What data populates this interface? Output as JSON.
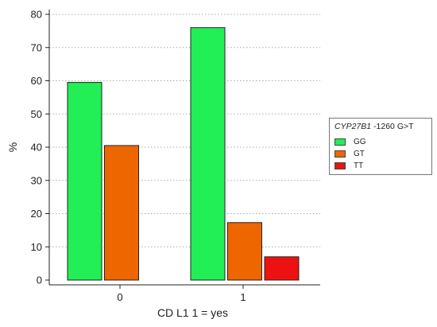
{
  "chart_data": {
    "type": "bar",
    "categories": [
      "0",
      "1"
    ],
    "series": [
      {
        "name": "GG",
        "values": [
          59.5,
          76.0
        ],
        "color": "#22ee55"
      },
      {
        "name": "GT",
        "values": [
          40.5,
          17.3
        ],
        "color": "#ee6600"
      },
      {
        "name": "TT",
        "values": [
          0.0,
          7.0
        ],
        "color": "#ee1111"
      }
    ],
    "xlabel": "CD L1 1 = yes",
    "ylabel": "%",
    "ylim": [
      0,
      80
    ],
    "yticks": [
      0,
      10,
      20,
      30,
      40,
      50,
      60,
      70,
      80
    ],
    "grid": "horizontal dotted",
    "legend_position": "right",
    "legend_title_italic": "CYP27B1",
    "legend_title_rest": " -1260 G>T"
  }
}
